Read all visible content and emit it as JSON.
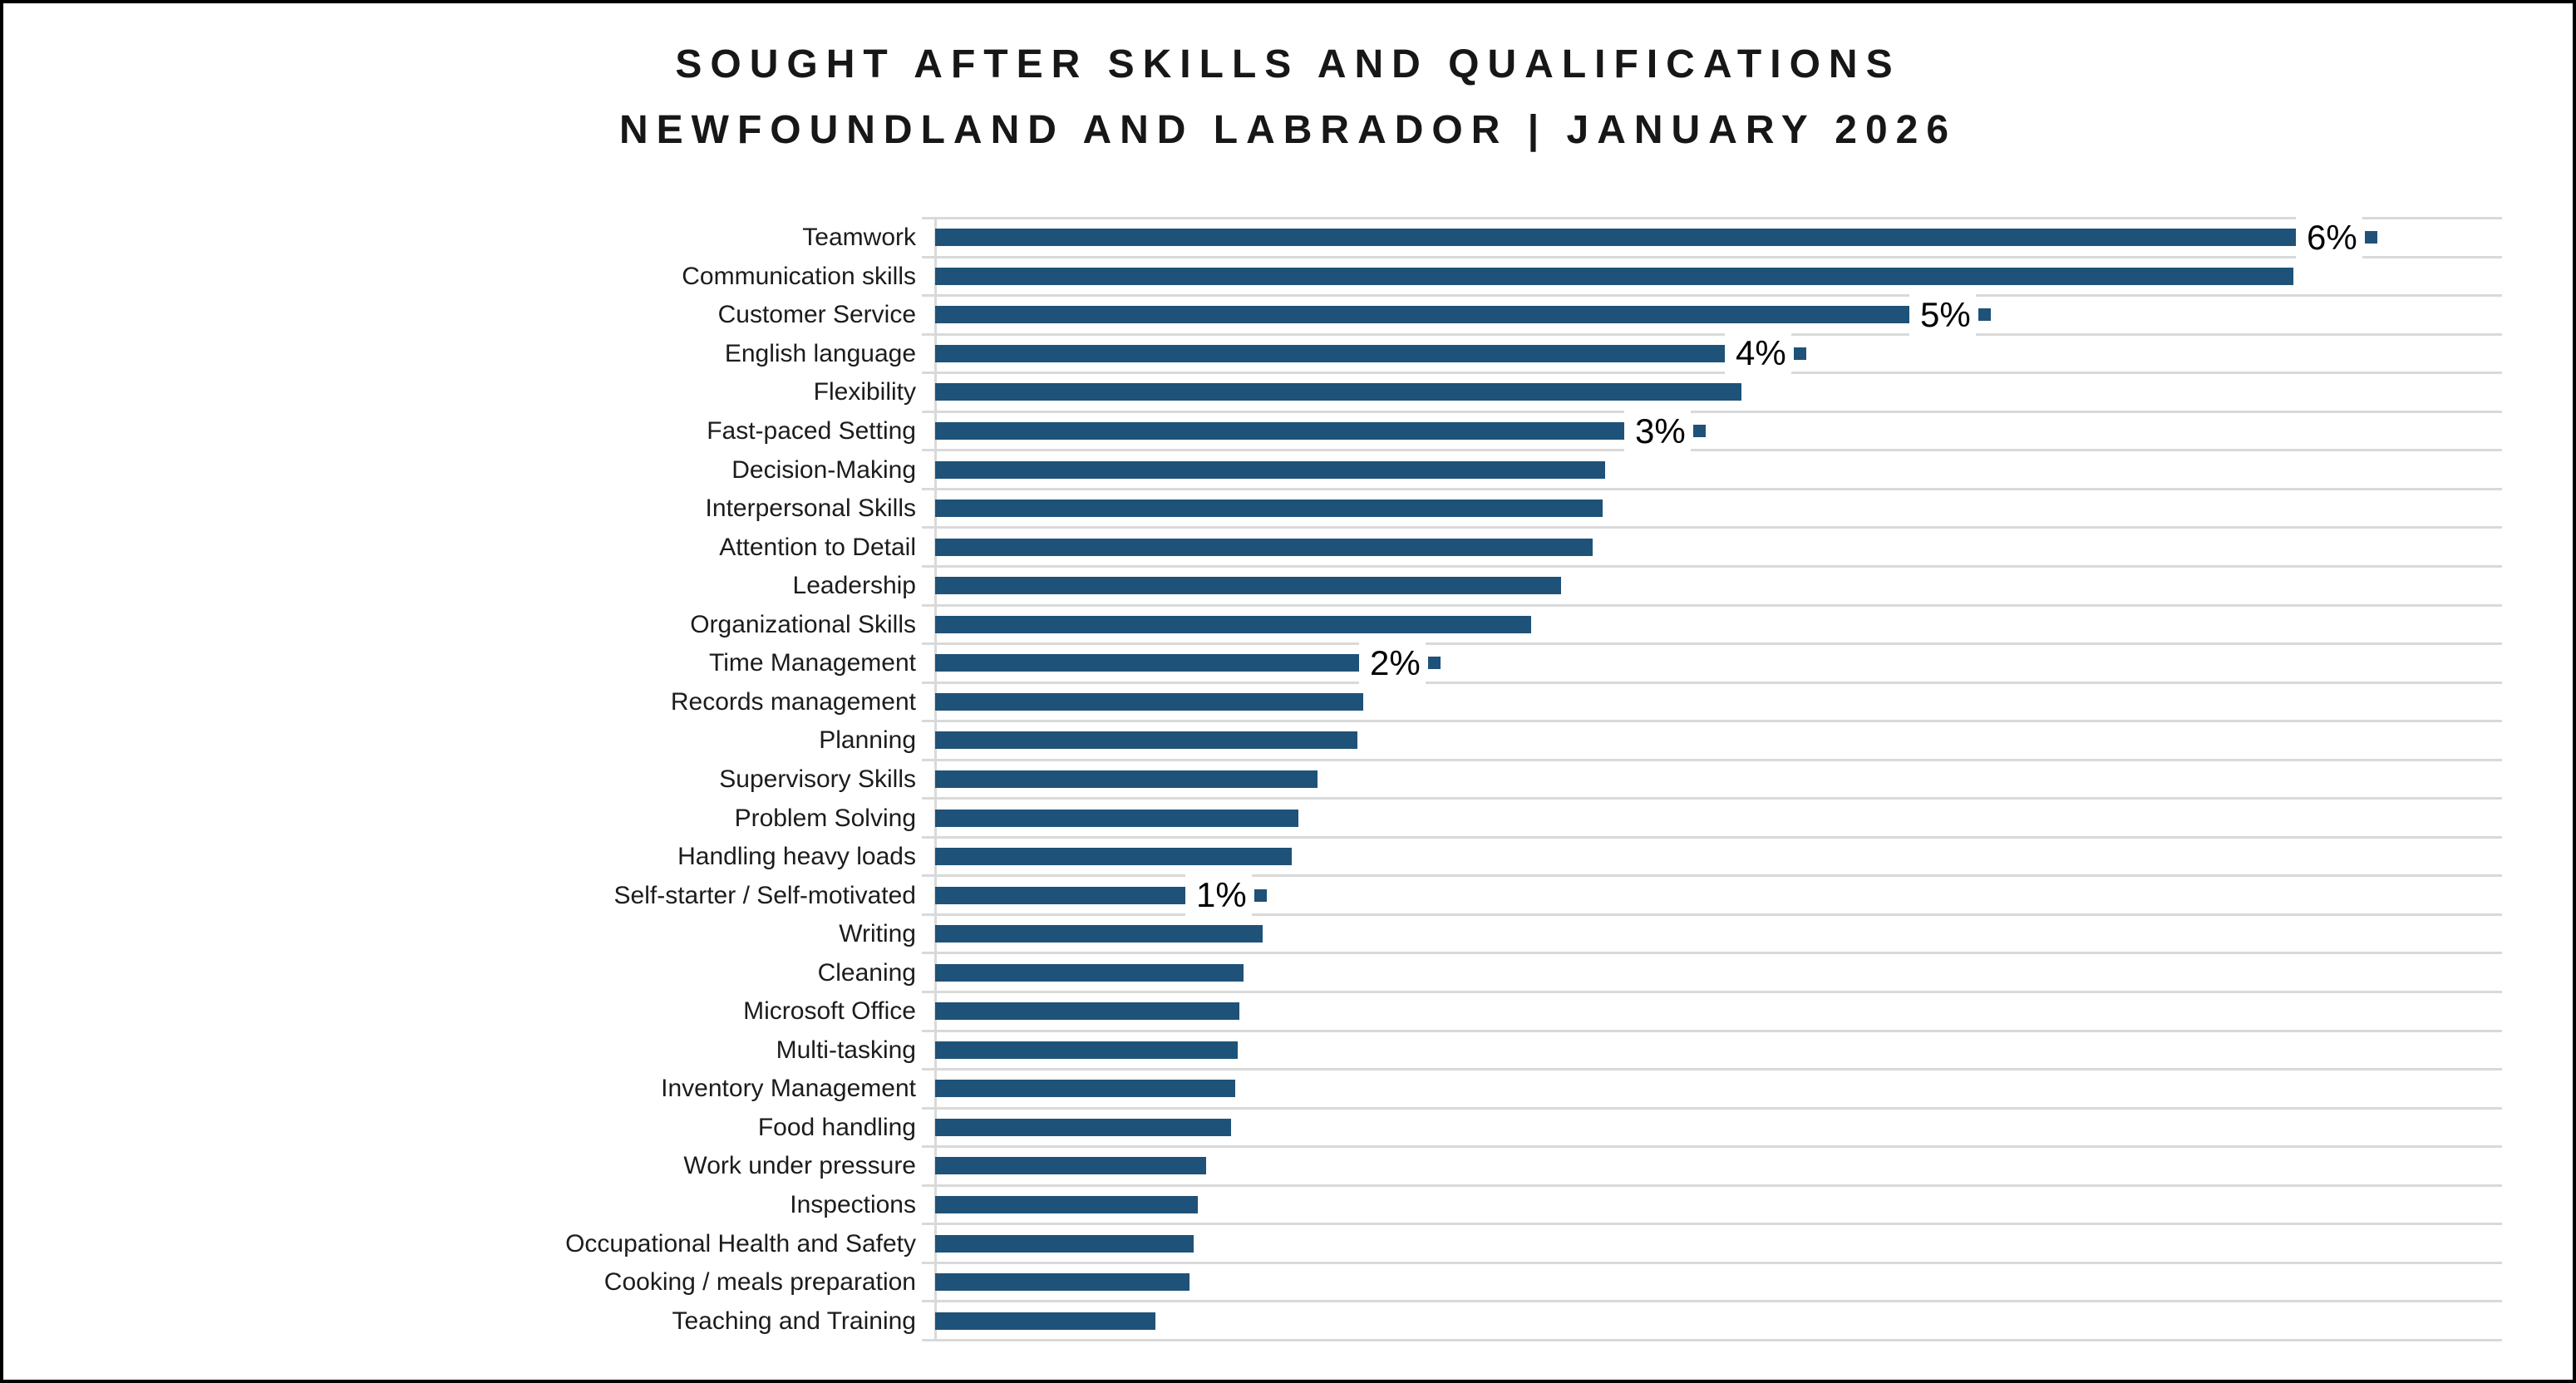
{
  "title": {
    "line1": "SOUGHT AFTER SKILLS AND QUALIFICATIONS",
    "line2": "NEWFOUNDLAND AND LABRADOR | JANUARY 2026"
  },
  "colors": {
    "bar": "#1F5278",
    "marker": "#1F5278",
    "gridline": "#D9D9D9",
    "axis_line": "#D9D9D9",
    "title_text": "#171717",
    "category_text": "#1C1C1C",
    "data_label_text": "#000000",
    "frame_border": "#000000",
    "background": "#FFFFFF"
  },
  "chart_data": {
    "type": "bar",
    "orientation": "horizontal",
    "title": "SOUGHT AFTER SKILLS AND QUALIFICATIONS",
    "subtitle": "NEWFOUNDLAND AND LABRADOR | JANUARY 2026",
    "xlabel": "",
    "ylabel": "",
    "unit": "%",
    "xlim": [
      0,
      7.5
    ],
    "value_axis_ticks_visible": false,
    "gridlines": "horizontal-category-separators",
    "legend_position": "none",
    "categories": [
      "Teamwork",
      "Communication skills",
      "Customer Service",
      "English language",
      "Flexibility",
      "Fast-paced Setting",
      "Decision-Making",
      "Interpersonal Skills",
      "Attention to Detail",
      "Leadership",
      "Organizational Skills",
      "Time Management",
      "Records management",
      "Planning",
      "Supervisory Skills",
      "Problem Solving",
      "Handling heavy loads",
      "Self-starter / Self-motivated",
      "Writing",
      "Cleaning",
      "Microsoft Office",
      "Multi-tasking",
      "Inventory Management",
      "Food handling",
      "Work under pressure",
      "Inspections",
      "Occupational Health and Safety",
      "Cooking / meals preparation",
      "Teaching and Training"
    ],
    "values": [
      6.48,
      6.47,
      4.64,
      3.76,
      3.84,
      3.28,
      3.19,
      3.18,
      3.13,
      2.98,
      2.84,
      2.02,
      2.04,
      2.01,
      1.82,
      1.73,
      1.7,
      1.19,
      1.56,
      1.47,
      1.45,
      1.44,
      1.43,
      1.41,
      1.29,
      1.25,
      1.23,
      1.21,
      1.05
    ],
    "data_labels": [
      "6%",
      null,
      "5%",
      "4%",
      null,
      "3%",
      null,
      null,
      null,
      null,
      null,
      "2%",
      null,
      null,
      null,
      null,
      null,
      "1%",
      null,
      null,
      null,
      null,
      null,
      null,
      null,
      null,
      null,
      null,
      null
    ],
    "data_label_markers": "small filled square to the right of each shown data label"
  }
}
